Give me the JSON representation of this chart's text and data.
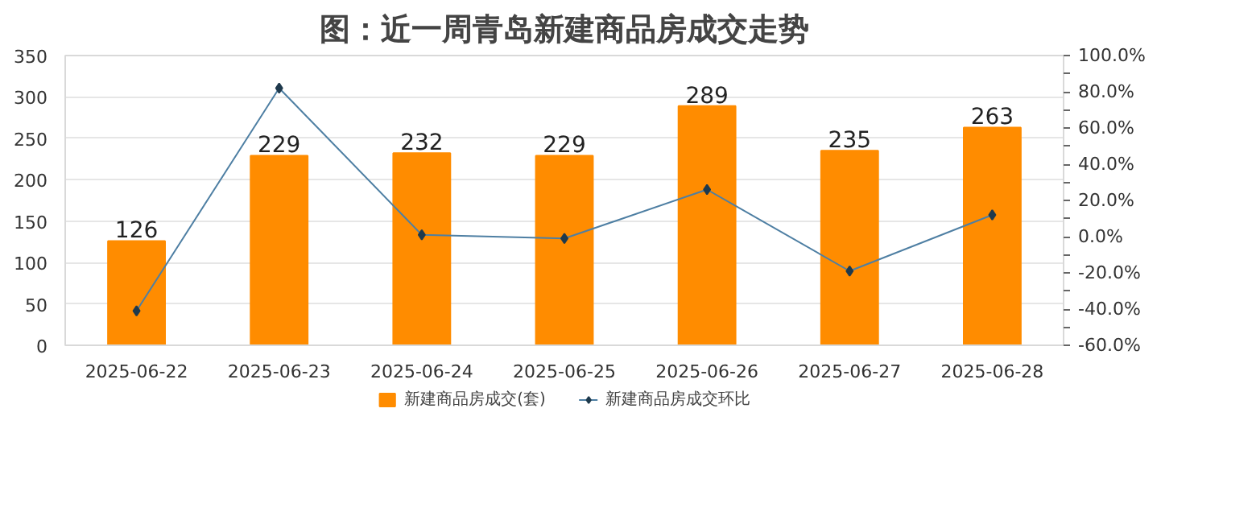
{
  "chart_data": {
    "type": "bar",
    "title": "图：近一周青岛新建商品房成交走势",
    "categories": [
      "2025-06-22",
      "2025-06-23",
      "2025-06-24",
      "2025-06-25",
      "2025-06-26",
      "2025-06-27",
      "2025-06-28"
    ],
    "series": [
      {
        "name": "新建商品房成交(套)",
        "color": "#ff8c00",
        "values": [
          126,
          229,
          232,
          229,
          289,
          235,
          263
        ],
        "value_labels": [
          "126",
          "229",
          "232",
          "229",
          "289",
          "235",
          "263"
        ]
      },
      {
        "name": "新建商品房成交环比",
        "type": "line",
        "axis": "y2",
        "color": "#4e7fa3",
        "marker": "diamond",
        "values": [
          -41,
          82,
          1,
          -1,
          26,
          -19,
          12
        ]
      }
    ],
    "ylim": [
      0,
      350
    ],
    "yticks": [
      0,
      50,
      100,
      150,
      200,
      250,
      300,
      350
    ],
    "y2lim": [
      -60,
      100
    ],
    "y2ticks": [
      {
        "value": -60,
        "label": "-60.0%"
      },
      {
        "value": -50,
        "label": null
      },
      {
        "value": -40,
        "label": "-40.0%"
      },
      {
        "value": -30,
        "label": null
      },
      {
        "value": -20,
        "label": "-20.0%"
      },
      {
        "value": -10,
        "label": null
      },
      {
        "value": 0,
        "label": "0.0%"
      },
      {
        "value": 10,
        "label": null
      },
      {
        "value": 20,
        "label": "20.0%"
      },
      {
        "value": 30,
        "label": null
      },
      {
        "value": 40,
        "label": "40.0%"
      },
      {
        "value": 50,
        "label": null
      },
      {
        "value": 60,
        "label": "60.0%"
      },
      {
        "value": 70,
        "label": null
      },
      {
        "value": 80,
        "label": "80.0%"
      },
      {
        "value": 90,
        "label": null
      },
      {
        "value": 100,
        "label": "100.0%"
      }
    ],
    "grid": "y",
    "legend": "bottom"
  }
}
